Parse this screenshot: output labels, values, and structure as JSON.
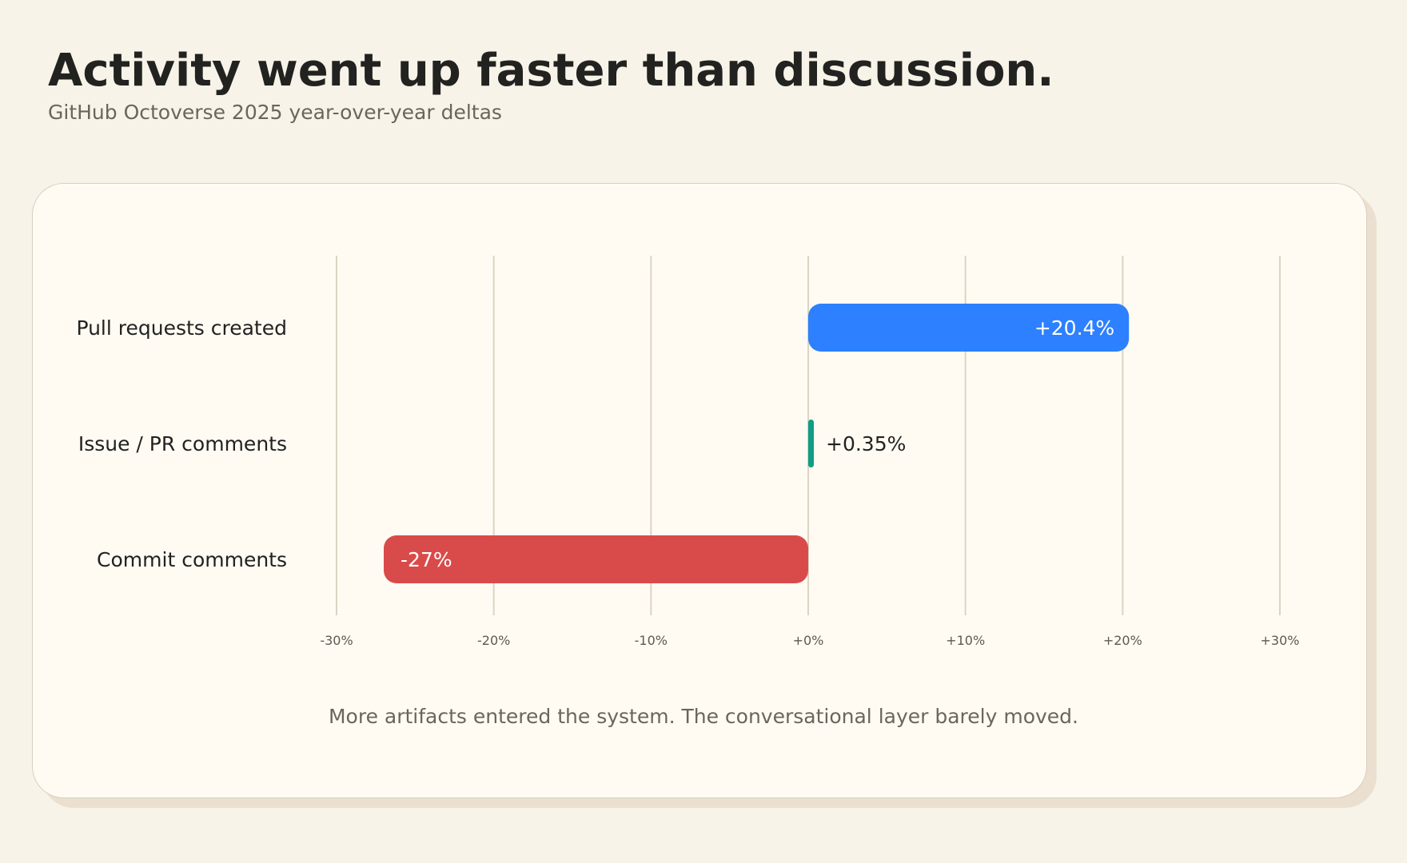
{
  "title": "Activity went up faster than discussion.",
  "subtitle": "GitHub Octoverse 2025 year-over-year deltas",
  "footnote": "More artifacts entered the system. The conversational layer barely moved.",
  "chart_data": {
    "type": "bar",
    "orientation": "horizontal",
    "categories": [
      "Pull requests created",
      "Issue / PR comments",
      "Commit comments"
    ],
    "values": [
      20.4,
      0.35,
      -27
    ],
    "value_labels": [
      "+20.4%",
      "+0.35%",
      "-27%"
    ],
    "colors": [
      "#2d80ff",
      "#0f9d85",
      "#d94b4b"
    ],
    "xlim": [
      -30,
      30
    ],
    "xticks": [
      -30,
      -20,
      -10,
      0,
      10,
      20,
      30
    ],
    "xtick_labels": [
      "-30%",
      "-20%",
      "-10%",
      "+0%",
      "+10%",
      "+20%",
      "+30%"
    ],
    "grid": "vertical",
    "xlabel": "",
    "ylabel": ""
  }
}
